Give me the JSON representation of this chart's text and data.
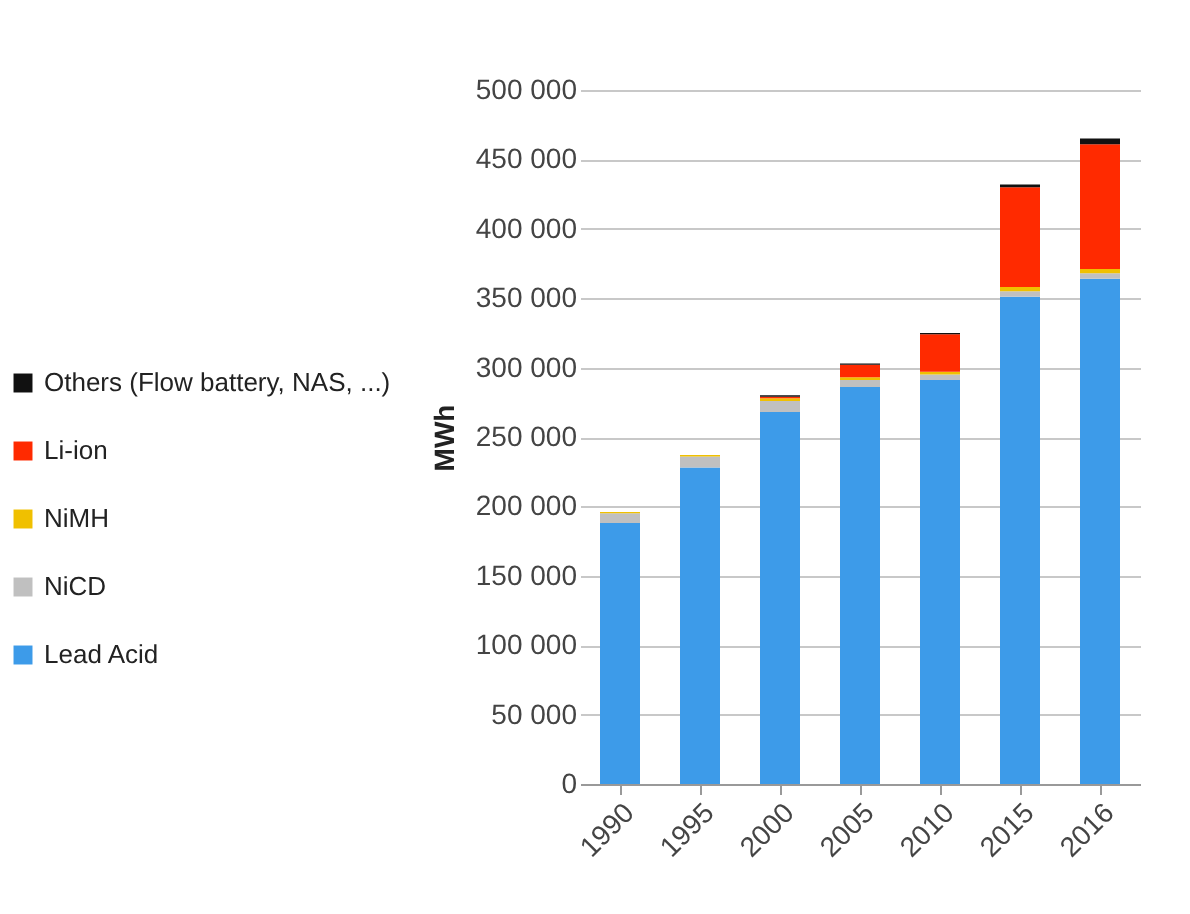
{
  "chart_data": {
    "type": "bar",
    "stacked": true,
    "ylabel": "MWh",
    "categories": [
      "1990",
      "1995",
      "2000",
      "2005",
      "2010",
      "2015",
      "2016"
    ],
    "series": [
      {
        "name": "Lead Acid",
        "color": "#3d9be9",
        "values": [
          188000,
          228000,
          268000,
          286000,
          291000,
          351000,
          364000
        ]
      },
      {
        "name": "NiCD",
        "color": "#c0c0c0",
        "values": [
          7000,
          8000,
          8000,
          5000,
          4000,
          4000,
          4000
        ]
      },
      {
        "name": "NiMH",
        "color": "#f0c000",
        "values": [
          1000,
          1000,
          2000,
          2000,
          2000,
          3000,
          3000
        ]
      },
      {
        "name": "Li-ion",
        "color": "#ff2a00",
        "values": [
          0,
          0,
          1000,
          9000,
          27000,
          72000,
          90000
        ]
      },
      {
        "name": "Others (Flow battery, NAS, ...)",
        "color": "#111111",
        "values": [
          0,
          0,
          1000,
          1000,
          1000,
          2000,
          4000
        ]
      }
    ],
    "ylim": [
      0,
      500000
    ],
    "yticks": [
      {
        "value": 0,
        "label": "0"
      },
      {
        "value": 50000,
        "label": "50 000"
      },
      {
        "value": 100000,
        "label": "100 000"
      },
      {
        "value": 150000,
        "label": "150 000"
      },
      {
        "value": 200000,
        "label": "200 000"
      },
      {
        "value": 250000,
        "label": "250 000"
      },
      {
        "value": 300000,
        "label": "300 000"
      },
      {
        "value": 350000,
        "label": "350 000"
      },
      {
        "value": 400000,
        "label": "400 000"
      },
      {
        "value": 450000,
        "label": "450 000"
      },
      {
        "value": 500000,
        "label": "500 000"
      }
    ],
    "grid": "y",
    "legend": "left"
  }
}
